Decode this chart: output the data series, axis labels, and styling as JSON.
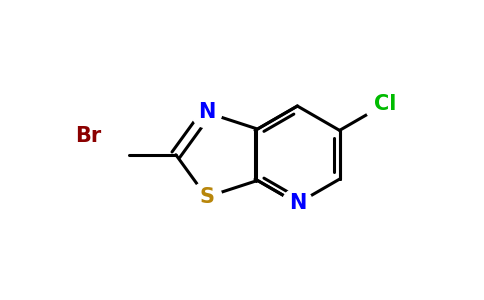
{
  "background_color": "#ffffff",
  "bond_color": "#000000",
  "bond_width": 2.2,
  "atoms": {
    "S": {
      "color": "#b8860b",
      "fontsize": 15,
      "fontweight": "bold"
    },
    "N": {
      "color": "#0000ff",
      "fontsize": 15,
      "fontweight": "bold"
    },
    "Br": {
      "color": "#8b0000",
      "fontsize": 15,
      "fontweight": "bold"
    },
    "Cl": {
      "color": "#00bb00",
      "fontsize": 15,
      "fontweight": "bold"
    }
  },
  "xlim": [
    0,
    10
  ],
  "ylim": [
    0,
    6.2
  ]
}
